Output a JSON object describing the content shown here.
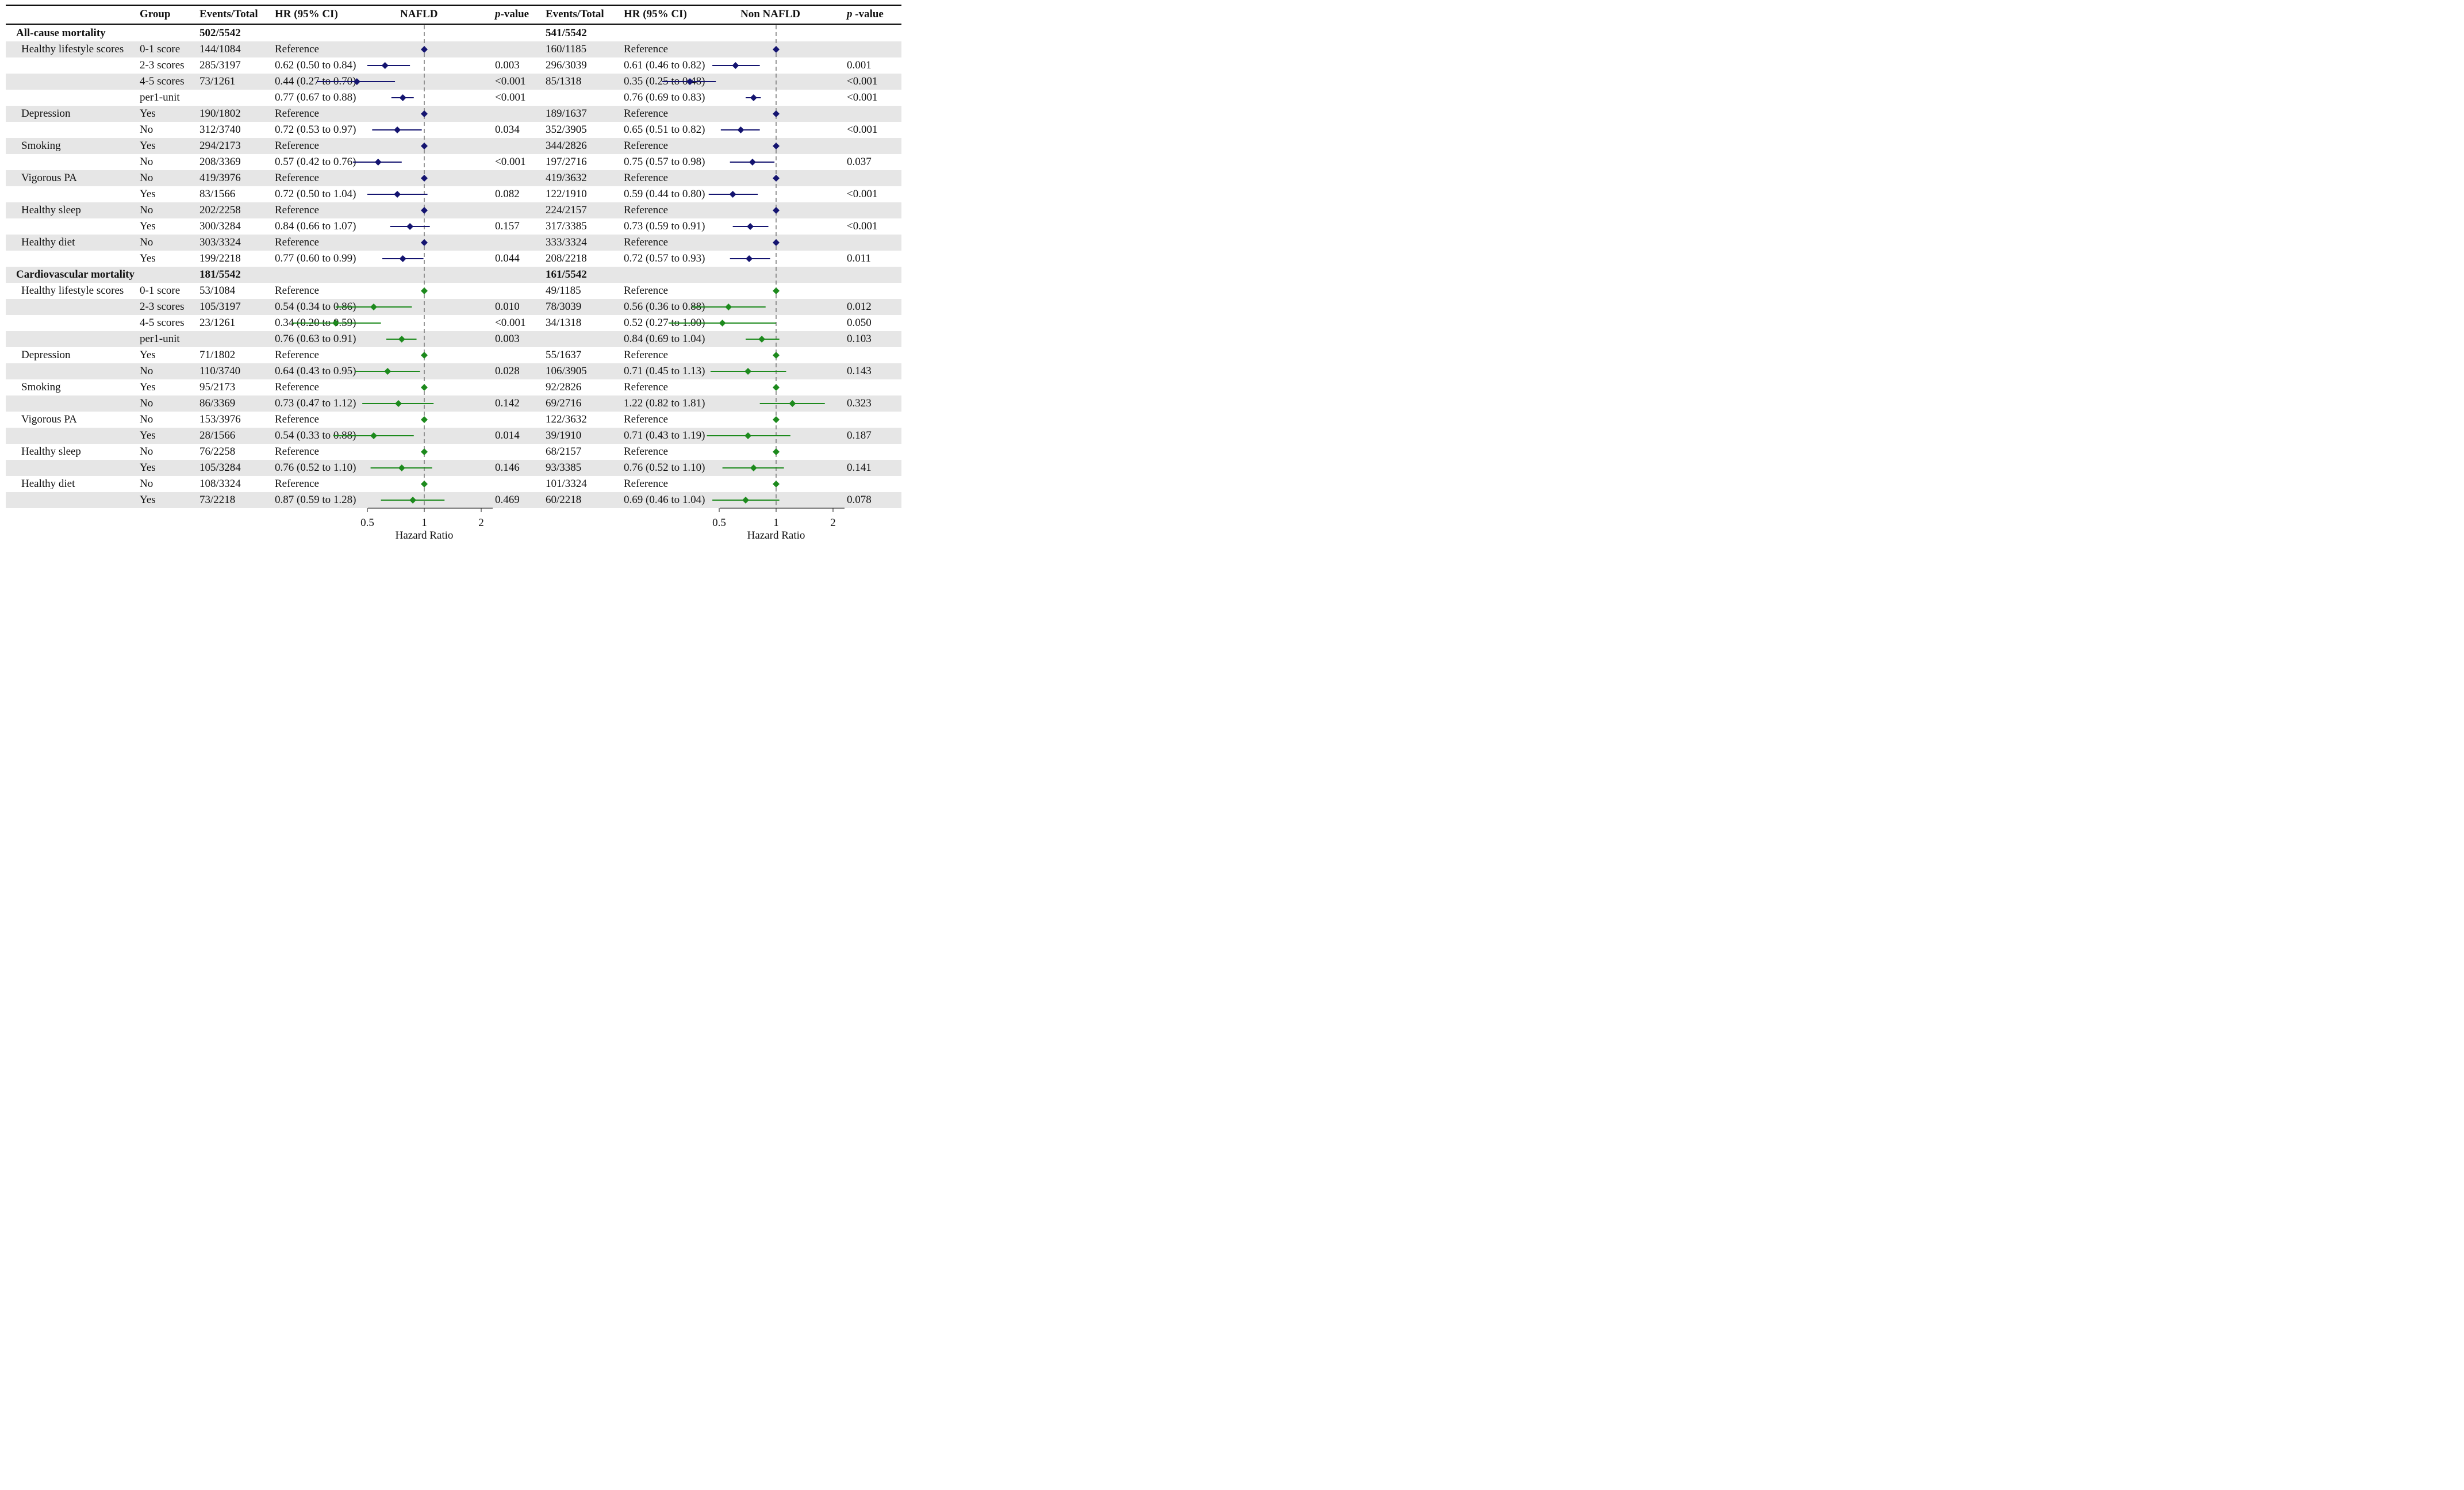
{
  "headers": {
    "group": "Group",
    "nafld_events": "Events/Total",
    "nafld_hr": "HR (95% CI)",
    "nafld_plot": "NAFLD",
    "nafld_p_italic": "p",
    "nafld_p_rest": "-value",
    "non_events": "Events/Total",
    "non_hr": "HR (95% CI)",
    "non_plot": "Non NAFLD",
    "non_p_italic": "p",
    "non_p_rest": " -value"
  },
  "colors": {
    "all_cause": "#141470",
    "cardiovascular": "#1d8a1d",
    "reference_line": "#777777",
    "row_band": "#e6e6e6"
  },
  "axis": {
    "xlabel": "Hazard Ratio",
    "ticks": [
      "0.5",
      "1",
      "2"
    ],
    "tick_values": [
      0.5,
      1,
      2
    ],
    "xlim": [
      0.3,
      2.4
    ]
  },
  "rows": [
    {
      "type": "section",
      "label": "All-cause mortality",
      "nafld_events": "502/5542",
      "non_events": "541/5542",
      "shade": false
    },
    {
      "type": "item",
      "label": "Healthy lifestyle scores",
      "group": "0-1 score",
      "nafld_events": "144/1084",
      "nafld_hr": "Reference",
      "nafld_p": "",
      "non_events": "160/1185",
      "non_hr": "Reference",
      "non_p": "",
      "shade": true
    },
    {
      "type": "item",
      "label": "",
      "group": "2-3 scores",
      "nafld_events": "285/3197",
      "nafld_hr": "0.62 (0.50 to 0.84)",
      "nafld_p": "0.003",
      "non_events": "296/3039",
      "non_hr": "0.61 (0.46  to 0.82)",
      "non_p": "0.001",
      "shade": false
    },
    {
      "type": "item",
      "label": "",
      "group": "4-5 scores",
      "nafld_events": "73/1261",
      "nafld_hr": "0.44 (0.27 to 0.70)",
      "nafld_p": "<0.001",
      "non_events": "85/1318",
      "non_hr": "0.35 (0.25  to 0.48)",
      "non_p": "<0.001",
      "shade": true
    },
    {
      "type": "item",
      "label": "",
      "group": "per1-unit",
      "nafld_events": "",
      "nafld_hr": "0.77 (0.67 to 0.88)",
      "nafld_p": "<0.001",
      "non_events": "",
      "non_hr": "0.76 (0.69  to 0.83)",
      "non_p": "<0.001",
      "shade": false
    },
    {
      "type": "item",
      "label": "Depression",
      "group": "Yes",
      "nafld_events": "190/1802",
      "nafld_hr": "Reference",
      "nafld_p": "",
      "non_events": "189/1637",
      "non_hr": "Reference",
      "non_p": "",
      "shade": true
    },
    {
      "type": "item",
      "label": "",
      "group": "No",
      "nafld_events": "312/3740",
      "nafld_hr": "0.72 (0.53 to 0.97)",
      "nafld_p": "0.034",
      "non_events": "352/3905",
      "non_hr": "0.65 (0.51  to 0.82)",
      "non_p": "<0.001",
      "shade": false
    },
    {
      "type": "item",
      "label": "Smoking",
      "group": "Yes",
      "nafld_events": "294/2173",
      "nafld_hr": "Reference",
      "nafld_p": "",
      "non_events": "344/2826",
      "non_hr": "Reference",
      "non_p": "",
      "shade": true
    },
    {
      "type": "item",
      "label": "",
      "group": "No",
      "nafld_events": "208/3369",
      "nafld_hr": "0.57 (0.42 to 0.76)",
      "nafld_p": "<0.001",
      "non_events": "197/2716",
      "non_hr": "0.75 (0.57  to 0.98)",
      "non_p": "0.037",
      "shade": false
    },
    {
      "type": "item",
      "label": "Vigorous PA",
      "group": "No",
      "nafld_events": "419/3976",
      "nafld_hr": "Reference",
      "nafld_p": "",
      "non_events": "419/3632",
      "non_hr": "Reference",
      "non_p": "",
      "shade": true
    },
    {
      "type": "item",
      "label": "",
      "group": "Yes",
      "nafld_events": "83/1566",
      "nafld_hr": "0.72 (0.50 to 1.04)",
      "nafld_p": "0.082",
      "non_events": "122/1910",
      "non_hr": "0.59 (0.44  to 0.80)",
      "non_p": "<0.001",
      "shade": false
    },
    {
      "type": "item",
      "label": "Healthy sleep",
      "group": "No",
      "nafld_events": "202/2258",
      "nafld_hr": "Reference",
      "nafld_p": "",
      "non_events": "224/2157",
      "non_hr": "Reference",
      "non_p": "",
      "shade": true
    },
    {
      "type": "item",
      "label": "",
      "group": "Yes",
      "nafld_events": "300/3284",
      "nafld_hr": "0.84 (0.66 to 1.07)",
      "nafld_p": "0.157",
      "non_events": "317/3385",
      "non_hr": "0.73 (0.59  to 0.91)",
      "non_p": "<0.001",
      "shade": false
    },
    {
      "type": "item",
      "label": "Healthy diet",
      "group": "No",
      "nafld_events": "303/3324",
      "nafld_hr": "Reference",
      "nafld_p": "",
      "non_events": "333/3324",
      "non_hr": "Reference",
      "non_p": "",
      "shade": true
    },
    {
      "type": "item",
      "label": "",
      "group": "Yes",
      "nafld_events": "199/2218",
      "nafld_hr": "0.77 (0.60 to 0.99)",
      "nafld_p": "0.044",
      "non_events": "208/2218",
      "non_hr": "0.72 (0.57  to 0.93)",
      "non_p": "0.011",
      "shade": false
    },
    {
      "type": "section",
      "label": "Cardiovascular mortality",
      "nafld_events": "181/5542",
      "non_events": "161/5542",
      "shade": true
    },
    {
      "type": "item",
      "label": "Healthy lifestyle scores",
      "group": "0-1 score",
      "nafld_events": "53/1084",
      "nafld_hr": "Reference",
      "nafld_p": "",
      "non_events": "49/1185",
      "non_hr": "Reference",
      "non_p": "",
      "shade": false
    },
    {
      "type": "item",
      "label": "",
      "group": "2-3 scores",
      "nafld_events": "105/3197",
      "nafld_hr": "0.54 (0.34 to 0.86)",
      "nafld_p": "0.010",
      "non_events": "78/3039",
      "non_hr": "0.56 (0.36 to 0.88)",
      "non_p": "0.012",
      "shade": true
    },
    {
      "type": "item",
      "label": "",
      "group": "4-5 scores",
      "nafld_events": "23/1261",
      "nafld_hr": "0.34 (0.20 to 0.59)",
      "nafld_p": "<0.001",
      "non_events": "34/1318",
      "non_hr": "0.52 (0.27 to 1.00)",
      "non_p": "0.050",
      "shade": false
    },
    {
      "type": "item",
      "label": "",
      "group": "per1-unit",
      "nafld_events": "",
      "nafld_hr": "0.76 (0.63 to 0.91)",
      "nafld_p": "0.003",
      "non_events": "",
      "non_hr": "0.84 (0.69 to 1.04)",
      "non_p": "0.103",
      "shade": true
    },
    {
      "type": "item",
      "label": "Depression",
      "group": "Yes",
      "nafld_events": "71/1802",
      "nafld_hr": "Reference",
      "nafld_p": "",
      "non_events": "55/1637",
      "non_hr": "Reference",
      "non_p": "",
      "shade": false
    },
    {
      "type": "item",
      "label": "",
      "group": "No",
      "nafld_events": "110/3740",
      "nafld_hr": "0.64 (0.43 to 0.95)",
      "nafld_p": "0.028",
      "non_events": "106/3905",
      "non_hr": "0.71 (0.45 to 1.13)",
      "non_p": "0.143",
      "shade": true
    },
    {
      "type": "item",
      "label": "Smoking",
      "group": "Yes",
      "nafld_events": "95/2173",
      "nafld_hr": "Reference",
      "nafld_p": "",
      "non_events": "92/2826",
      "non_hr": "Reference",
      "non_p": "",
      "shade": false
    },
    {
      "type": "item",
      "label": "",
      "group": "No",
      "nafld_events": "86/3369",
      "nafld_hr": "0.73 (0.47 to 1.12)",
      "nafld_p": "0.142",
      "non_events": "69/2716",
      "non_hr": "1.22 (0.82 to 1.81)",
      "non_p": "0.323",
      "shade": true
    },
    {
      "type": "item",
      "label": "Vigorous PA",
      "group": "No",
      "nafld_events": "153/3976",
      "nafld_hr": "Reference",
      "nafld_p": "",
      "non_events": "122/3632",
      "non_hr": "Reference",
      "non_p": "",
      "shade": false
    },
    {
      "type": "item",
      "label": "",
      "group": "Yes",
      "nafld_events": "28/1566",
      "nafld_hr": "0.54 (0.33 to 0.88)",
      "nafld_p": "0.014",
      "non_events": "39/1910",
      "non_hr": "0.71 (0.43 to 1.19)",
      "non_p": "0.187",
      "shade": true
    },
    {
      "type": "item",
      "label": "Healthy sleep",
      "group": "No",
      "nafld_events": "76/2258",
      "nafld_hr": "Reference",
      "nafld_p": "",
      "non_events": "68/2157",
      "non_hr": "Reference",
      "non_p": "",
      "shade": false
    },
    {
      "type": "item",
      "label": "",
      "group": "Yes",
      "nafld_events": "105/3284",
      "nafld_hr": "0.76 (0.52 to 1.10)",
      "nafld_p": "0.146",
      "non_events": "93/3385",
      "non_hr": "0.76 (0.52 to 1.10)",
      "non_p": "0.141",
      "shade": true
    },
    {
      "type": "item",
      "label": "Healthy diet",
      "group": "No",
      "nafld_events": "108/3324",
      "nafld_hr": "Reference",
      "nafld_p": "",
      "non_events": "101/3324",
      "non_hr": "Reference",
      "non_p": "",
      "shade": false
    },
    {
      "type": "item",
      "label": "",
      "group": "Yes",
      "nafld_events": "73/2218",
      "nafld_hr": "0.87 (0.59 to 1.28)",
      "nafld_p": "0.469",
      "non_events": "60/2218",
      "non_hr": "0.69 (0.46 to 1.04)",
      "non_p": "0.078",
      "shade": true
    }
  ],
  "chart_data": [
    {
      "type": "scatter",
      "title": "NAFLD",
      "xlabel": "Hazard Ratio",
      "scale": "log",
      "xlim": [
        0.3,
        2.4
      ],
      "ticks": [
        0.5,
        1,
        2
      ],
      "reference_value": 1,
      "series": [
        {
          "name": "All-cause mortality",
          "points": [
            {
              "row": 1,
              "hr": 1
            },
            {
              "row": 2,
              "hr": 0.62,
              "lo": 0.5,
              "hi": 0.84
            },
            {
              "row": 3,
              "hr": 0.44,
              "lo": 0.27,
              "hi": 0.7
            },
            {
              "row": 4,
              "hr": 0.77,
              "lo": 0.67,
              "hi": 0.88
            },
            {
              "row": 5,
              "hr": 1
            },
            {
              "row": 6,
              "hr": 0.72,
              "lo": 0.53,
              "hi": 0.97
            },
            {
              "row": 7,
              "hr": 1
            },
            {
              "row": 8,
              "hr": 0.57,
              "lo": 0.42,
              "hi": 0.76
            },
            {
              "row": 9,
              "hr": 1
            },
            {
              "row": 10,
              "hr": 0.72,
              "lo": 0.5,
              "hi": 1.04
            },
            {
              "row": 11,
              "hr": 1
            },
            {
              "row": 12,
              "hr": 0.84,
              "lo": 0.66,
              "hi": 1.07
            },
            {
              "row": 13,
              "hr": 1
            },
            {
              "row": 14,
              "hr": 0.77,
              "lo": 0.6,
              "hi": 0.99
            }
          ]
        },
        {
          "name": "Cardiovascular mortality",
          "points": [
            {
              "row": 16,
              "hr": 1
            },
            {
              "row": 17,
              "hr": 0.54,
              "lo": 0.34,
              "hi": 0.86
            },
            {
              "row": 18,
              "hr": 0.34,
              "lo": 0.2,
              "hi": 0.59
            },
            {
              "row": 19,
              "hr": 0.76,
              "lo": 0.63,
              "hi": 0.91
            },
            {
              "row": 20,
              "hr": 1
            },
            {
              "row": 21,
              "hr": 0.64,
              "lo": 0.43,
              "hi": 0.95
            },
            {
              "row": 22,
              "hr": 1
            },
            {
              "row": 23,
              "hr": 0.73,
              "lo": 0.47,
              "hi": 1.12
            },
            {
              "row": 24,
              "hr": 1
            },
            {
              "row": 25,
              "hr": 0.54,
              "lo": 0.33,
              "hi": 0.88
            },
            {
              "row": 26,
              "hr": 1
            },
            {
              "row": 27,
              "hr": 0.76,
              "lo": 0.52,
              "hi": 1.1
            },
            {
              "row": 28,
              "hr": 1
            },
            {
              "row": 29,
              "hr": 0.87,
              "lo": 0.59,
              "hi": 1.28
            }
          ]
        }
      ]
    },
    {
      "type": "scatter",
      "title": "Non NAFLD",
      "xlabel": "Hazard Ratio",
      "scale": "log",
      "xlim": [
        0.3,
        2.4
      ],
      "ticks": [
        0.5,
        1,
        2
      ],
      "reference_value": 1,
      "series": [
        {
          "name": "All-cause mortality",
          "points": [
            {
              "row": 1,
              "hr": 1
            },
            {
              "row": 2,
              "hr": 0.61,
              "lo": 0.46,
              "hi": 0.82
            },
            {
              "row": 3,
              "hr": 0.35,
              "lo": 0.25,
              "hi": 0.48
            },
            {
              "row": 4,
              "hr": 0.76,
              "lo": 0.69,
              "hi": 0.83
            },
            {
              "row": 5,
              "hr": 1
            },
            {
              "row": 6,
              "hr": 0.65,
              "lo": 0.51,
              "hi": 0.82
            },
            {
              "row": 7,
              "hr": 1
            },
            {
              "row": 8,
              "hr": 0.75,
              "lo": 0.57,
              "hi": 0.98
            },
            {
              "row": 9,
              "hr": 1
            },
            {
              "row": 10,
              "hr": 0.59,
              "lo": 0.44,
              "hi": 0.8
            },
            {
              "row": 11,
              "hr": 1
            },
            {
              "row": 12,
              "hr": 0.73,
              "lo": 0.59,
              "hi": 0.91
            },
            {
              "row": 13,
              "hr": 1
            },
            {
              "row": 14,
              "hr": 0.72,
              "lo": 0.57,
              "hi": 0.93
            }
          ]
        },
        {
          "name": "Cardiovascular mortality",
          "points": [
            {
              "row": 16,
              "hr": 1
            },
            {
              "row": 17,
              "hr": 0.56,
              "lo": 0.36,
              "hi": 0.88
            },
            {
              "row": 18,
              "hr": 0.52,
              "lo": 0.27,
              "hi": 1.0
            },
            {
              "row": 19,
              "hr": 0.84,
              "lo": 0.69,
              "hi": 1.04
            },
            {
              "row": 20,
              "hr": 1
            },
            {
              "row": 21,
              "hr": 0.71,
              "lo": 0.45,
              "hi": 1.13
            },
            {
              "row": 22,
              "hr": 1
            },
            {
              "row": 23,
              "hr": 1.22,
              "lo": 0.82,
              "hi": 1.81
            },
            {
              "row": 24,
              "hr": 1
            },
            {
              "row": 25,
              "hr": 0.71,
              "lo": 0.43,
              "hi": 1.19
            },
            {
              "row": 26,
              "hr": 1
            },
            {
              "row": 27,
              "hr": 0.76,
              "lo": 0.52,
              "hi": 1.1
            },
            {
              "row": 28,
              "hr": 1
            },
            {
              "row": 29,
              "hr": 0.69,
              "lo": 0.46,
              "hi": 1.04
            }
          ]
        }
      ]
    }
  ]
}
